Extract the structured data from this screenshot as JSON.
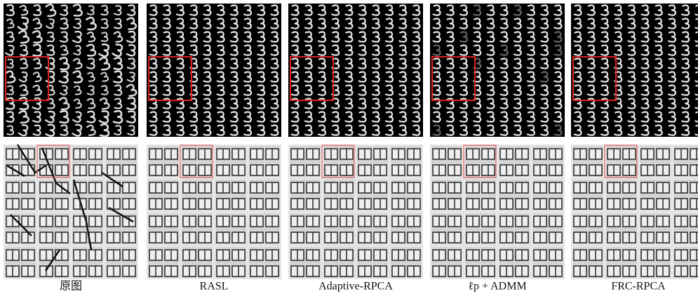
{
  "panels": [
    {
      "caption": "原图"
    },
    {
      "caption": "RASL"
    },
    {
      "caption": "Adaptive-RPCA"
    },
    {
      "caption": "ℓp + ADMM"
    },
    {
      "caption": "FRC-RPCA"
    }
  ]
}
